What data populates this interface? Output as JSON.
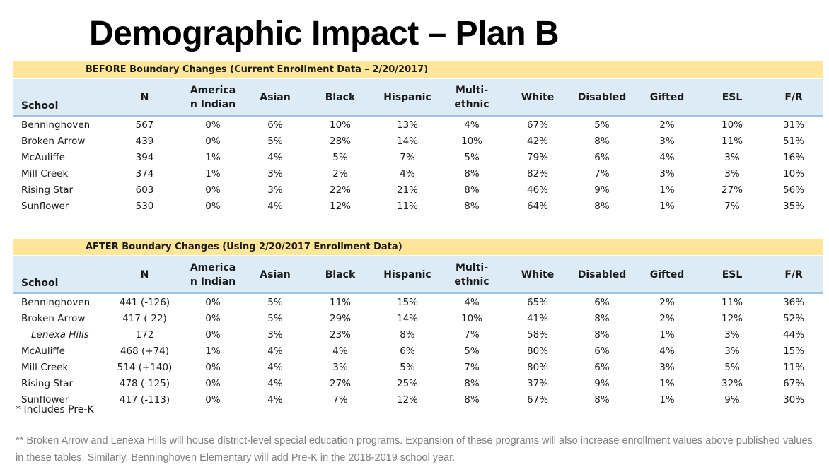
{
  "title": "Demographic Impact – Plan B",
  "columns": [
    "School",
    "N",
    "America n Indian",
    "Asian",
    "Black",
    "Hispanic",
    "Multi- ethnic",
    "White",
    "Disabled",
    "Gifted",
    "ESL",
    "F/R"
  ],
  "before": {
    "banner": "BEFORE Boundary Changes (Current Enrollment Data – 2/20/2017)",
    "rows": [
      {
        "school": "Benninghoven",
        "italic": false,
        "values": [
          "567",
          "0%",
          "6%",
          "10%",
          "13%",
          "4%",
          "67%",
          "5%",
          "2%",
          "10%",
          "31%"
        ]
      },
      {
        "school": "Broken Arrow",
        "italic": false,
        "values": [
          "439",
          "0%",
          "5%",
          "28%",
          "14%",
          "10%",
          "42%",
          "8%",
          "3%",
          "11%",
          "51%"
        ]
      },
      {
        "school": "McAuliffe",
        "italic": false,
        "values": [
          "394",
          "1%",
          "4%",
          "5%",
          "7%",
          "5%",
          "79%",
          "6%",
          "4%",
          "3%",
          "16%"
        ]
      },
      {
        "school": "Mill Creek",
        "italic": false,
        "values": [
          "374",
          "1%",
          "3%",
          "2%",
          "4%",
          "8%",
          "82%",
          "7%",
          "3%",
          "3%",
          "10%"
        ]
      },
      {
        "school": "Rising Star",
        "italic": false,
        "values": [
          "603",
          "0%",
          "3%",
          "22%",
          "21%",
          "8%",
          "46%",
          "9%",
          "1%",
          "27%",
          "56%"
        ]
      },
      {
        "school": "Sunflower",
        "italic": false,
        "values": [
          "530",
          "0%",
          "4%",
          "12%",
          "11%",
          "8%",
          "64%",
          "8%",
          "1%",
          "7%",
          "35%"
        ]
      }
    ]
  },
  "after": {
    "banner": "AFTER Boundary Changes (Using 2/20/2017 Enrollment Data)",
    "rows": [
      {
        "school": "Benninghoven",
        "italic": false,
        "values": [
          "441 (-126)",
          "0%",
          "5%",
          "11%",
          "15%",
          "4%",
          "65%",
          "6%",
          "2%",
          "11%",
          "36%"
        ]
      },
      {
        "school": "Broken Arrow",
        "italic": false,
        "values": [
          "417 (-22)",
          "0%",
          "5%",
          "29%",
          "14%",
          "10%",
          "41%",
          "8%",
          "2%",
          "12%",
          "52%"
        ]
      },
      {
        "school": "Lenexa Hills",
        "italic": true,
        "values": [
          "172",
          "0%",
          "3%",
          "23%",
          "8%",
          "7%",
          "58%",
          "8%",
          "1%",
          "3%",
          "44%"
        ]
      },
      {
        "school": "McAuliffe",
        "italic": false,
        "values": [
          "468 (+74)",
          "1%",
          "4%",
          "4%",
          "6%",
          "5%",
          "80%",
          "6%",
          "4%",
          "3%",
          "15%"
        ]
      },
      {
        "school": "Mill Creek",
        "italic": false,
        "values": [
          "514 (+140)",
          "0%",
          "4%",
          "3%",
          "5%",
          "7%",
          "80%",
          "6%",
          "3%",
          "5%",
          "11%"
        ]
      },
      {
        "school": "Rising Star",
        "italic": false,
        "values": [
          "478 (-125)",
          "0%",
          "4%",
          "27%",
          "25%",
          "8%",
          "37%",
          "9%",
          "1%",
          "32%",
          "67%"
        ]
      },
      {
        "school": "Sunflower",
        "italic": false,
        "values": [
          "417 (-113)",
          "0%",
          "4%",
          "7%",
          "12%",
          "8%",
          "67%",
          "8%",
          "1%",
          "9%",
          "30%"
        ]
      }
    ]
  },
  "footnote_prek": "* Includes Pre-K",
  "footnote_special": "** Broken Arrow and Lenexa Hills will house district-level special education programs.  Expansion of these programs will also increase enrollment values above published values in these tables.  Similarly, Benninghoven Elementary will add Pre-K in the 2018-2019 school year.",
  "colors": {
    "banner": "#FFE699",
    "header": "#DDEBF7",
    "header_rule": "#9DC3E6",
    "note_text": "#7F7F7F"
  }
}
